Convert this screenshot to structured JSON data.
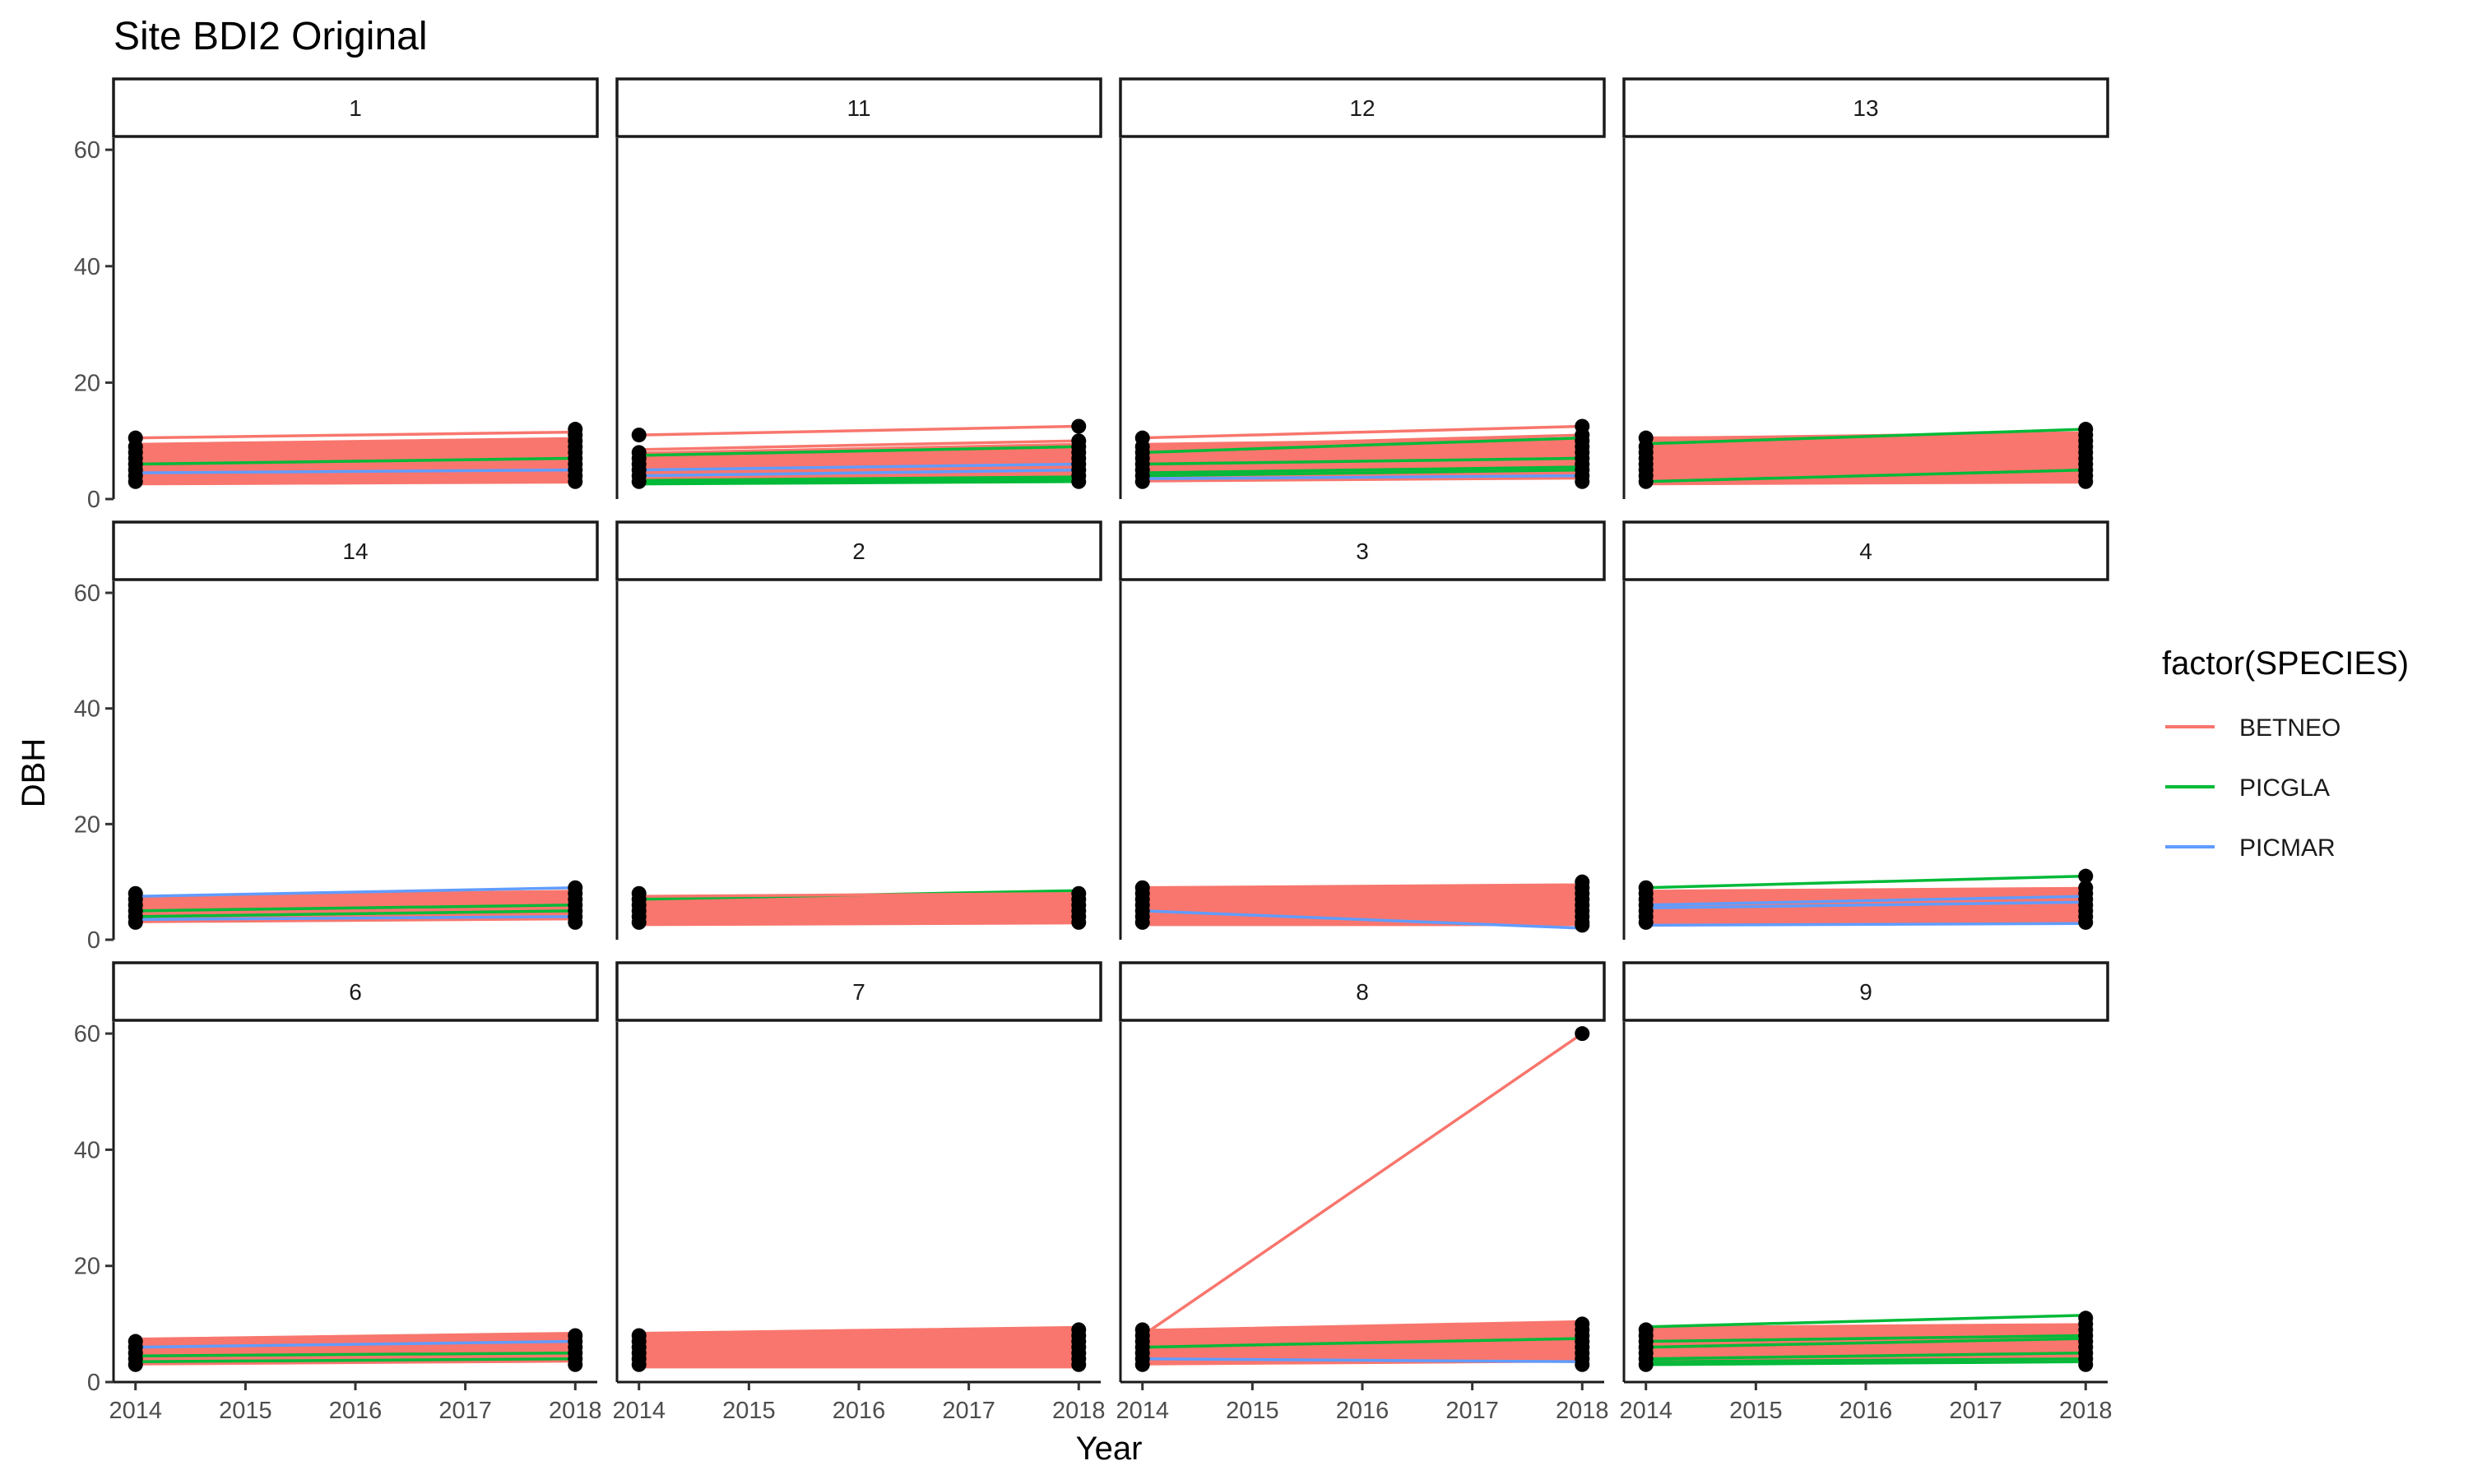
{
  "chart_data": {
    "type": "line",
    "title": "Site BDI2 Original",
    "xlabel": "Year",
    "ylabel": "DBH",
    "x_ticks": [
      "2014",
      "2015",
      "2016",
      "2017",
      "2018"
    ],
    "y_ticks": [
      "0",
      "20",
      "40",
      "60"
    ],
    "xlim": [
      2013.8,
      2018.2
    ],
    "ylim": [
      0,
      62
    ],
    "grid": false,
    "legend": {
      "title": "factor(SPECIES)",
      "position": "right",
      "entries": [
        {
          "name": "BETNEO",
          "color": "#F8766D"
        },
        {
          "name": "PICGLA",
          "color": "#00BA38"
        },
        {
          "name": "PICMAR",
          "color": "#619CFF"
        }
      ]
    },
    "point_color": "#000000",
    "panels": [
      {
        "label": "1",
        "band": {
          "species": "BETNEO",
          "y2014": [
            2.5,
            9.5
          ],
          "y2018": [
            2.8,
            10.5
          ],
          "points2014": [
            3,
            4,
            5,
            6,
            7,
            8,
            9,
            10.5
          ],
          "points2018": [
            3,
            4,
            5,
            6,
            7,
            8,
            9,
            10,
            11,
            12
          ]
        },
        "series": [
          {
            "species": "BETNEO",
            "y": [
              10.5,
              11.5
            ]
          },
          {
            "species": "BETNEO",
            "y": [
              9.0,
              10.0
            ]
          },
          {
            "species": "PICGLA",
            "y": [
              6.0,
              7.0
            ]
          },
          {
            "species": "PICMAR",
            "y": [
              4.5,
              5.0
            ]
          }
        ]
      },
      {
        "label": "11",
        "band": {
          "species": "BETNEO",
          "y2014": [
            3,
            8
          ],
          "y2018": [
            3.5,
            9.5
          ],
          "points2014": [
            3,
            4,
            5,
            6,
            7,
            8,
            11
          ],
          "points2018": [
            3,
            4,
            5,
            6,
            7,
            8,
            9,
            10,
            12.5
          ]
        },
        "series": [
          {
            "species": "BETNEO",
            "y": [
              11.0,
              12.5
            ]
          },
          {
            "species": "BETNEO",
            "y": [
              8.5,
              10.0
            ]
          },
          {
            "species": "PICGLA",
            "y": [
              7.5,
              9.0
            ]
          },
          {
            "species": "PICMAR",
            "y": [
              5.0,
              6.0
            ]
          },
          {
            "species": "PICMAR",
            "y": [
              4.0,
              5.0
            ]
          },
          {
            "species": "PICGLA",
            "y": [
              3.0,
              3.5
            ]
          },
          {
            "species": "PICGLA",
            "y": [
              2.8,
              3.2
            ]
          },
          {
            "species": "PICGLA",
            "y": [
              3.2,
              3.8
            ]
          },
          {
            "species": "PICGLA",
            "y": [
              2.6,
              3.0
            ]
          }
        ]
      },
      {
        "label": "12",
        "band": {
          "species": "BETNEO",
          "y2014": [
            3,
            9.5
          ],
          "y2018": [
            3.5,
            10.5
          ],
          "points2014": [
            3,
            4,
            5,
            6,
            7,
            8,
            9,
            10.5
          ],
          "points2018": [
            3,
            4,
            5,
            6,
            7,
            8,
            9,
            10,
            11,
            12.5
          ]
        },
        "series": [
          {
            "species": "BETNEO",
            "y": [
              10.5,
              12.5
            ]
          },
          {
            "species": "BETNEO",
            "y": [
              9.0,
              11.0
            ]
          },
          {
            "species": "PICGLA",
            "y": [
              8.0,
              10.5
            ]
          },
          {
            "species": "PICGLA",
            "y": [
              6.0,
              7.0
            ]
          },
          {
            "species": "PICGLA",
            "y": [
              4.5,
              5.5
            ]
          },
          {
            "species": "PICGLA",
            "y": [
              4.0,
              5.0
            ]
          },
          {
            "species": "PICMAR",
            "y": [
              3.5,
              4.0
            ]
          }
        ]
      },
      {
        "label": "13",
        "band": {
          "species": "BETNEO",
          "y2014": [
            2.5,
            10.5
          ],
          "y2018": [
            2.8,
            11.5
          ],
          "points2014": [
            3,
            4,
            5,
            6,
            7,
            8,
            9,
            10.5
          ],
          "points2018": [
            3,
            4,
            5,
            6,
            7,
            8,
            9,
            10,
            11,
            12
          ]
        },
        "series": [
          {
            "species": "BETNEO",
            "y": [
              10.5,
              11.0
            ]
          },
          {
            "species": "PICGLA",
            "y": [
              9.5,
              12.0
            ]
          },
          {
            "species": "PICGLA",
            "y": [
              3.0,
              5.0
            ]
          },
          {
            "species": "BETNEO",
            "y": [
              6.0,
              8.0
            ]
          }
        ]
      },
      {
        "label": "14",
        "band": {
          "species": "BETNEO",
          "y2014": [
            3,
            7.5
          ],
          "y2018": [
            3.5,
            8.5
          ],
          "points2014": [
            3,
            4,
            5,
            6,
            7,
            8
          ],
          "points2018": [
            3,
            4,
            5,
            6,
            7,
            8,
            9
          ]
        },
        "series": [
          {
            "species": "PICMAR",
            "y": [
              7.5,
              9.0
            ]
          },
          {
            "species": "PICGLA",
            "y": [
              5.0,
              6.0
            ]
          },
          {
            "species": "PICGLA",
            "y": [
              4.0,
              5.0
            ]
          },
          {
            "species": "PICMAR",
            "y": [
              3.5,
              4.0
            ]
          }
        ]
      },
      {
        "label": "2",
        "band": {
          "species": "BETNEO",
          "y2014": [
            2.5,
            7.5
          ],
          "y2018": [
            2.8,
            8.0
          ],
          "points2014": [
            3,
            4,
            5,
            6,
            7,
            8
          ],
          "points2018": [
            3,
            4,
            5,
            6,
            7,
            8
          ]
        },
        "series": [
          {
            "species": "PICGLA",
            "y": [
              7.0,
              8.5
            ]
          },
          {
            "species": "BETNEO",
            "y": [
              7.5,
              8.0
            ]
          }
        ]
      },
      {
        "label": "3",
        "band": {
          "species": "BETNEO",
          "y2014": [
            2.5,
            9.0
          ],
          "y2018": [
            2.5,
            9.5
          ],
          "points2014": [
            3,
            4,
            5,
            6,
            7,
            8,
            9
          ],
          "points2018": [
            2.5,
            3,
            4,
            5,
            6,
            7,
            8,
            9,
            10
          ]
        },
        "series": [
          {
            "species": "PICMAR",
            "y": [
              5.0,
              2.0
            ]
          },
          {
            "species": "BETNEO",
            "y": [
              9.0,
              9.5
            ]
          }
        ]
      },
      {
        "label": "4",
        "band": {
          "species": "BETNEO",
          "y2014": [
            2.5,
            8.5
          ],
          "y2018": [
            2.8,
            9.0
          ],
          "points2014": [
            3,
            4,
            5,
            6,
            7,
            8,
            9
          ],
          "points2018": [
            3,
            4,
            5,
            6,
            7,
            8,
            9,
            11
          ]
        },
        "series": [
          {
            "species": "PICGLA",
            "y": [
              9.0,
              11.0
            ]
          },
          {
            "species": "PICMAR",
            "y": [
              6.0,
              7.5
            ]
          },
          {
            "species": "PICMAR",
            "y": [
              5.5,
              6.5
            ]
          },
          {
            "species": "PICMAR",
            "y": [
              2.5,
              2.8
            ]
          }
        ]
      },
      {
        "label": "6",
        "band": {
          "species": "BETNEO",
          "y2014": [
            3,
            7.5
          ],
          "y2018": [
            3.5,
            8.5
          ],
          "points2014": [
            3,
            4,
            5,
            6,
            7
          ],
          "points2018": [
            3,
            4,
            5,
            6,
            7,
            8
          ]
        },
        "series": [
          {
            "species": "PICMAR",
            "y": [
              6.0,
              7.0
            ]
          },
          {
            "species": "PICGLA",
            "y": [
              3.5,
              4.0
            ]
          },
          {
            "species": "PICGLA",
            "y": [
              4.5,
              5.0
            ]
          }
        ]
      },
      {
        "label": "7",
        "band": {
          "species": "BETNEO",
          "y2014": [
            2.5,
            8.5
          ],
          "y2018": [
            2.5,
            9.5
          ],
          "points2014": [
            3,
            4,
            5,
            6,
            7,
            8
          ],
          "points2018": [
            3,
            4,
            5,
            6,
            7,
            8,
            9
          ]
        },
        "series": []
      },
      {
        "label": "8",
        "band": {
          "species": "BETNEO",
          "y2014": [
            3,
            9.0
          ],
          "y2018": [
            3.5,
            10.5
          ],
          "points2014": [
            3,
            4,
            5,
            6,
            7,
            8,
            9
          ],
          "points2018": [
            3,
            4,
            5,
            6,
            7,
            8,
            9,
            10,
            60
          ]
        },
        "series": [
          {
            "species": "BETNEO",
            "y": [
              8.0,
              60.0
            ]
          },
          {
            "species": "PICGLA",
            "y": [
              6.0,
              7.5
            ]
          },
          {
            "species": "PICMAR",
            "y": [
              4.0,
              3.5
            ]
          }
        ]
      },
      {
        "label": "9",
        "band": {
          "species": "BETNEO",
          "y2014": [
            3,
            9.5
          ],
          "y2018": [
            3.5,
            10.0
          ],
          "points2014": [
            3,
            4,
            5,
            6,
            7,
            8,
            9
          ],
          "points2018": [
            3,
            4,
            5,
            6,
            7,
            8,
            9,
            10,
            11
          ]
        },
        "series": [
          {
            "species": "PICGLA",
            "y": [
              9.5,
              11.5
            ]
          },
          {
            "species": "PICGLA",
            "y": [
              7.0,
              8.0
            ]
          },
          {
            "species": "PICGLA",
            "y": [
              6.0,
              7.5
            ]
          },
          {
            "species": "PICGLA",
            "y": [
              4.0,
              5.0
            ]
          },
          {
            "species": "PICGLA",
            "y": [
              3.5,
              4.0
            ]
          },
          {
            "species": "PICGLA",
            "y": [
              3.0,
              3.5
            ]
          },
          {
            "species": "BETNEO",
            "y": [
              8.5,
              9.5
            ]
          }
        ]
      }
    ]
  }
}
